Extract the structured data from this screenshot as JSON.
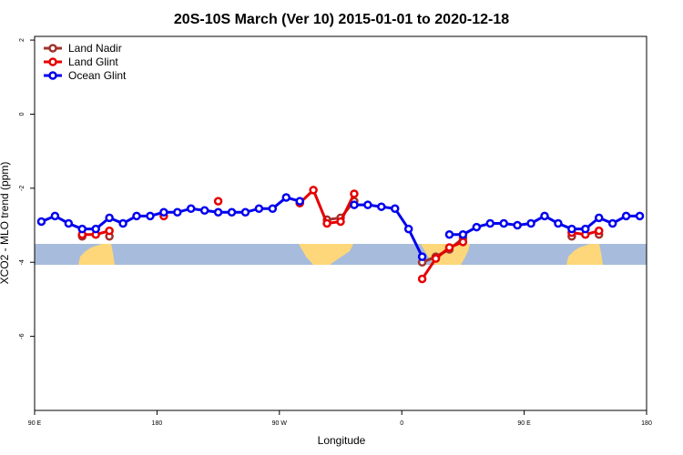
{
  "chart_data": {
    "type": "line",
    "title": "20S-10S March (Ver 10)   2015-01-01 to 2020-12-18",
    "xlabel": "Longitude",
    "ylabel": "XCO2 - MLO trend (ppm)",
    "x": [
      95,
      105,
      115,
      125,
      135,
      145,
      155,
      165,
      175,
      185,
      195,
      205,
      215,
      225,
      235,
      245,
      255,
      265,
      275,
      285,
      295,
      305,
      315,
      325,
      335,
      345,
      355,
      365,
      375,
      385,
      395,
      405,
      415,
      425,
      435,
      445,
      455,
      465,
      475,
      485,
      495,
      505,
      515,
      525,
      535
    ],
    "series": [
      {
        "name": "Land Nadir",
        "color": "#a0322d",
        "values": [
          null,
          null,
          null,
          -3.3,
          null,
          -3.3,
          null,
          null,
          null,
          null,
          null,
          null,
          null,
          null,
          null,
          null,
          null,
          null,
          null,
          -2.4,
          null,
          -2.85,
          -2.8,
          -2.35,
          null,
          null,
          null,
          null,
          -4.0,
          -3.85,
          -3.65,
          -3.35,
          null,
          null,
          null,
          null,
          null,
          null,
          null,
          -3.3,
          null,
          -3.25,
          null,
          null,
          null
        ]
      },
      {
        "name": "Land Glint",
        "color": "#e60000",
        "values": [
          null,
          null,
          null,
          -3.25,
          -3.25,
          -3.15,
          null,
          null,
          null,
          -2.75,
          null,
          null,
          null,
          -2.35,
          null,
          null,
          null,
          null,
          null,
          -2.4,
          -2.05,
          -2.95,
          -2.9,
          -2.15,
          null,
          null,
          null,
          null,
          -4.45,
          -3.9,
          -3.6,
          -3.45,
          null,
          null,
          null,
          null,
          null,
          null,
          null,
          -3.2,
          -3.25,
          -3.15,
          null,
          null,
          null
        ]
      },
      {
        "name": "Ocean Glint",
        "color": "#0000ee",
        "values": [
          -2.9,
          -2.75,
          -2.95,
          -3.1,
          -3.1,
          -2.8,
          -2.95,
          -2.75,
          -2.75,
          -2.65,
          -2.65,
          -2.55,
          -2.6,
          -2.65,
          -2.65,
          -2.65,
          -2.55,
          -2.55,
          -2.25,
          -2.35,
          null,
          null,
          null,
          -2.45,
          -2.45,
          -2.5,
          -2.55,
          -3.1,
          -3.85,
          null,
          -3.25,
          -3.25,
          -3.05,
          -2.95,
          -2.95,
          -3.0,
          -2.95,
          -2.75,
          -2.95,
          -3.1,
          -3.1,
          -2.8,
          -2.95,
          -2.75,
          -2.75
        ]
      }
    ],
    "xlim": [
      90,
      540
    ],
    "xticks": [
      {
        "value": 90,
        "label": "90 E"
      },
      {
        "value": 180,
        "label": "180"
      },
      {
        "value": 270,
        "label": "90 W"
      },
      {
        "value": 360,
        "label": "0"
      },
      {
        "value": 450,
        "label": "90 E"
      },
      {
        "value": 540,
        "label": "180"
      }
    ],
    "ylim": [
      -8,
      2.1
    ],
    "yticks": [
      -6,
      -4,
      -2,
      0,
      2
    ],
    "legend": "top-left"
  }
}
